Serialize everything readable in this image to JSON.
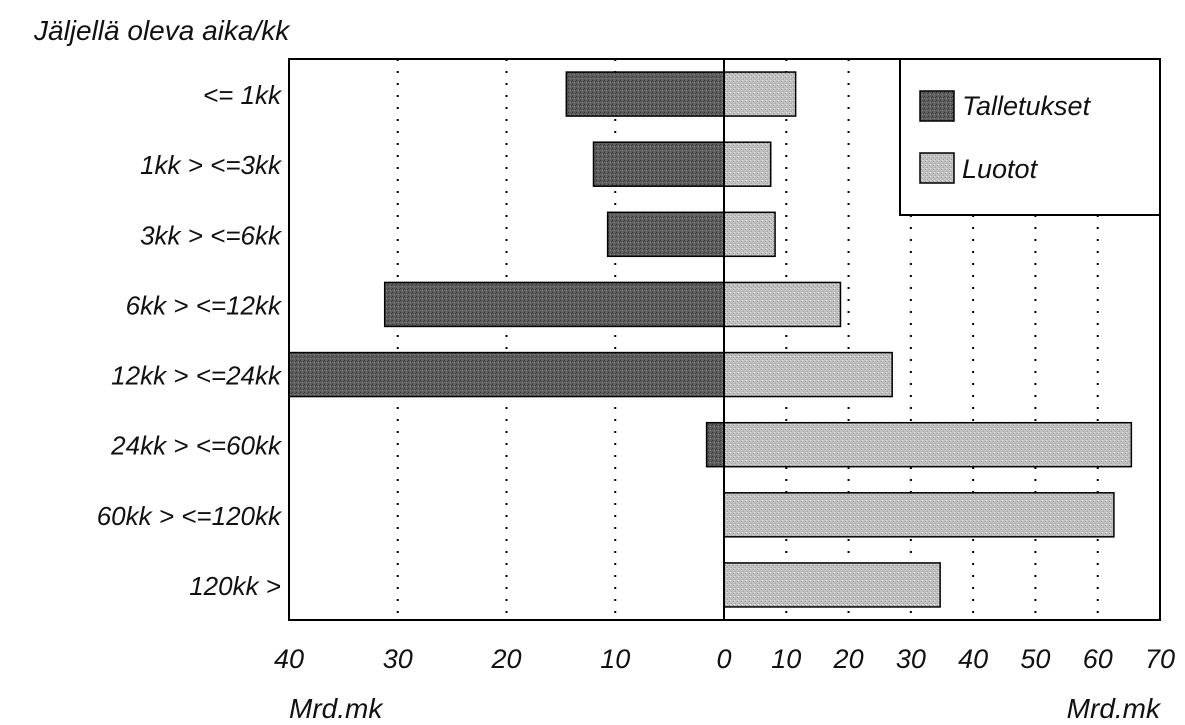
{
  "chart_data": {
    "type": "bar",
    "orientation": "horizontal",
    "title": "Jäljellä oleva aika/kk",
    "categories": [
      "<= 1kk",
      "1kk > <=3kk",
      "3kk > <=6kk",
      "6kk > <=12kk",
      "12kk > <=24kk",
      "24kk > <=60kk",
      "60kk > <=120kk",
      "120kk >"
    ],
    "series": [
      {
        "name": "Talletukset",
        "side": "left",
        "color": "#5a5a5a",
        "values": [
          14.5,
          12,
          10.7,
          31.2,
          40,
          1.6,
          0,
          0
        ]
      },
      {
        "name": "Luotot",
        "side": "right",
        "color": "#bdbdbd",
        "values": [
          11.5,
          7.5,
          8.2,
          18.7,
          27,
          65.4,
          62.6,
          34.7
        ]
      }
    ],
    "left_axis": {
      "ticks": [
        "40",
        "30",
        "20",
        "10",
        "0"
      ],
      "range": [
        40,
        0
      ],
      "unit_label": "Mrd.mk"
    },
    "right_axis": {
      "ticks": [
        "0",
        "10",
        "20",
        "30",
        "40",
        "50",
        "60",
        "70"
      ],
      "range": [
        0,
        70
      ],
      "unit_label": "Mrd.mk"
    },
    "legend": {
      "position": "top-right",
      "entries": [
        "Talletukset",
        "Luotot"
      ]
    },
    "grid": "vertical dotted"
  }
}
